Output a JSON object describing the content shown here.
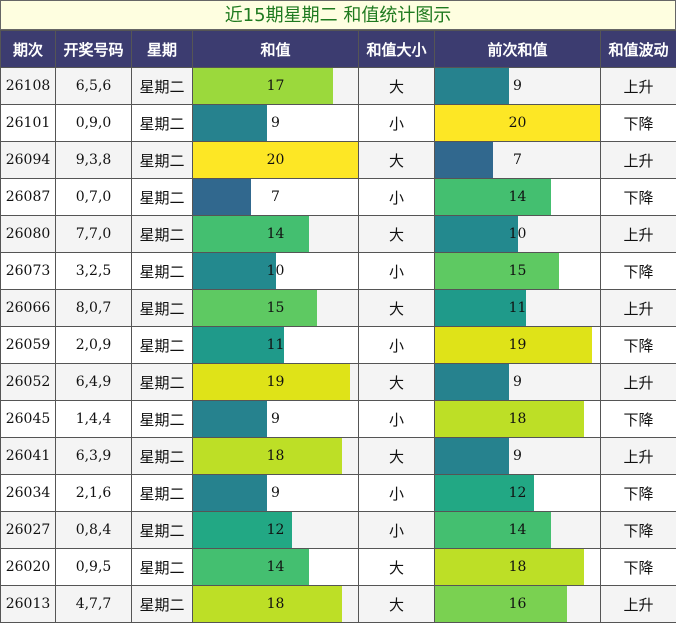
{
  "title": "近15期星期二 和值统计图示",
  "headers": [
    "期次",
    "开奖号码",
    "星期",
    "和值",
    "和值大小",
    "前次和值",
    "和值波动"
  ],
  "bar_max": 20,
  "colors": {
    "header_bg": "#3c3c70",
    "title_bg": "#fefee0",
    "title_text": "#1f7a1f",
    "bar_7": "#31688e",
    "bar_9": "#26828e",
    "bar_10": "#23898e",
    "bar_11": "#1f9a8a",
    "bar_12": "#22a884",
    "bar_14": "#44bf70",
    "bar_15": "#5ec962",
    "bar_16": "#7ad151",
    "bar_17": "#9bd93c",
    "bar_18": "#bddf26",
    "bar_19": "#dfe318",
    "bar_20": "#fde725"
  },
  "rows": [
    {
      "issue": "26108",
      "numbers": "6,5,6",
      "weekday": "星期二",
      "sum": 17,
      "size": "大",
      "prev_sum": 9,
      "trend": "上升"
    },
    {
      "issue": "26101",
      "numbers": "0,9,0",
      "weekday": "星期二",
      "sum": 9,
      "size": "小",
      "prev_sum": 20,
      "trend": "下降"
    },
    {
      "issue": "26094",
      "numbers": "9,3,8",
      "weekday": "星期二",
      "sum": 20,
      "size": "大",
      "prev_sum": 7,
      "trend": "上升"
    },
    {
      "issue": "26087",
      "numbers": "0,7,0",
      "weekday": "星期二",
      "sum": 7,
      "size": "小",
      "prev_sum": 14,
      "trend": "下降"
    },
    {
      "issue": "26080",
      "numbers": "7,7,0",
      "weekday": "星期二",
      "sum": 14,
      "size": "大",
      "prev_sum": 10,
      "trend": "上升"
    },
    {
      "issue": "26073",
      "numbers": "3,2,5",
      "weekday": "星期二",
      "sum": 10,
      "size": "小",
      "prev_sum": 15,
      "trend": "下降"
    },
    {
      "issue": "26066",
      "numbers": "8,0,7",
      "weekday": "星期二",
      "sum": 15,
      "size": "大",
      "prev_sum": 11,
      "trend": "上升"
    },
    {
      "issue": "26059",
      "numbers": "2,0,9",
      "weekday": "星期二",
      "sum": 11,
      "size": "小",
      "prev_sum": 19,
      "trend": "下降"
    },
    {
      "issue": "26052",
      "numbers": "6,4,9",
      "weekday": "星期二",
      "sum": 19,
      "size": "大",
      "prev_sum": 9,
      "trend": "上升"
    },
    {
      "issue": "26045",
      "numbers": "1,4,4",
      "weekday": "星期二",
      "sum": 9,
      "size": "小",
      "prev_sum": 18,
      "trend": "下降"
    },
    {
      "issue": "26041",
      "numbers": "6,3,9",
      "weekday": "星期二",
      "sum": 18,
      "size": "大",
      "prev_sum": 9,
      "trend": "上升"
    },
    {
      "issue": "26034",
      "numbers": "2,1,6",
      "weekday": "星期二",
      "sum": 9,
      "size": "小",
      "prev_sum": 12,
      "trend": "下降"
    },
    {
      "issue": "26027",
      "numbers": "0,8,4",
      "weekday": "星期二",
      "sum": 12,
      "size": "小",
      "prev_sum": 14,
      "trend": "下降"
    },
    {
      "issue": "26020",
      "numbers": "0,9,5",
      "weekday": "星期二",
      "sum": 14,
      "size": "大",
      "prev_sum": 18,
      "trend": "下降"
    },
    {
      "issue": "26013",
      "numbers": "4,7,7",
      "weekday": "星期二",
      "sum": 18,
      "size": "大",
      "prev_sum": 16,
      "trend": "上升"
    }
  ]
}
